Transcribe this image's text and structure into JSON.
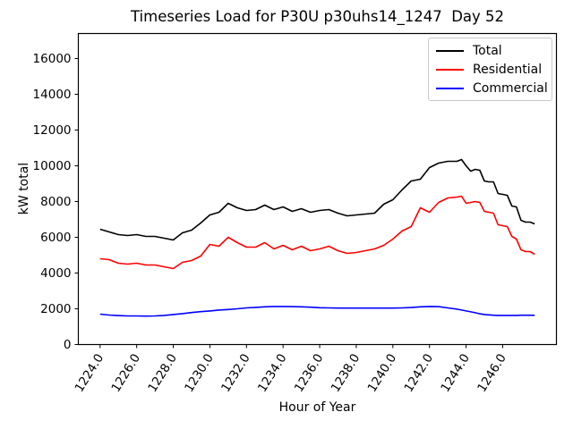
{
  "window": {
    "background": "#ffffff"
  },
  "chart_data": {
    "type": "line",
    "title": "Timeseries Load for P30U p30uhs14_1247  Day 52",
    "xlabel": "Hour of Year",
    "ylabel": "kW total",
    "xlim": [
      1222.8125,
      1248.9375
    ],
    "ylim": [
      0,
      17400
    ],
    "grid": false,
    "legend_position": "upper right",
    "x_ticks": [
      1224,
      1226,
      1228,
      1230,
      1232,
      1234,
      1236,
      1238,
      1240,
      1242,
      1244,
      1246
    ],
    "x_tick_labels": [
      "1224.0",
      "1226.0",
      "1228.0",
      "1230.0",
      "1232.0",
      "1234.0",
      "1236.0",
      "1238.0",
      "1240.0",
      "1242.0",
      "1244.0",
      "1246.0"
    ],
    "x_tick_rotation_deg": 58,
    "y_ticks": [
      0,
      2000,
      4000,
      6000,
      8000,
      10000,
      12000,
      14000,
      16000
    ],
    "x": [
      1224.0,
      1224.5,
      1225.0,
      1225.5,
      1226.0,
      1226.5,
      1227.0,
      1227.5,
      1228.0,
      1228.5,
      1229.0,
      1229.5,
      1230.0,
      1230.5,
      1231.0,
      1231.5,
      1232.0,
      1232.5,
      1233.0,
      1233.5,
      1234.0,
      1234.5,
      1235.0,
      1235.5,
      1236.0,
      1236.5,
      1237.0,
      1237.5,
      1238.0,
      1238.5,
      1239.0,
      1239.5,
      1240.0,
      1240.5,
      1241.0,
      1241.5,
      1242.0,
      1242.5,
      1243.0,
      1243.5,
      1243.75,
      1244.0,
      1244.25,
      1244.5,
      1244.75,
      1245.0,
      1245.25,
      1245.5,
      1245.75,
      1246.0,
      1246.25,
      1246.5,
      1246.75,
      1247.0,
      1247.25,
      1247.5,
      1247.75
    ],
    "series": [
      {
        "name": "Total",
        "color": "#000000",
        "values": [
          6450,
          6300,
          6150,
          6100,
          6150,
          6050,
          6050,
          5950,
          5850,
          6250,
          6400,
          6800,
          7250,
          7400,
          7900,
          7650,
          7500,
          7550,
          7800,
          7550,
          7700,
          7450,
          7600,
          7400,
          7500,
          7550,
          7350,
          7200,
          7250,
          7300,
          7350,
          7850,
          8100,
          8650,
          9150,
          9250,
          9900,
          10150,
          10250,
          10250,
          10350,
          10000,
          9700,
          9800,
          9750,
          9150,
          9100,
          9100,
          8450,
          8400,
          8350,
          7750,
          7700,
          6950,
          6850,
          6850,
          6750
        ]
      },
      {
        "name": "Residential",
        "color": "#ff0000",
        "values": [
          4800,
          4750,
          4550,
          4500,
          4550,
          4450,
          4450,
          4350,
          4250,
          4600,
          4700,
          4950,
          5600,
          5500,
          6000,
          5700,
          5450,
          5450,
          5700,
          5350,
          5550,
          5300,
          5500,
          5250,
          5350,
          5500,
          5250,
          5100,
          5150,
          5250,
          5350,
          5550,
          5900,
          6350,
          6600,
          7650,
          7400,
          7950,
          8200,
          8250,
          8300,
          7900,
          7950,
          8000,
          7950,
          7450,
          7400,
          7350,
          6700,
          6650,
          6600,
          6050,
          5900,
          5300,
          5200,
          5200,
          5050
        ]
      },
      {
        "name": "Commercial",
        "color": "#0000ff",
        "values": [
          1700,
          1650,
          1620,
          1600,
          1600,
          1590,
          1600,
          1630,
          1680,
          1730,
          1790,
          1840,
          1880,
          1930,
          1960,
          2000,
          2050,
          2080,
          2110,
          2130,
          2130,
          2120,
          2110,
          2090,
          2060,
          2050,
          2040,
          2040,
          2040,
          2040,
          2040,
          2040,
          2040,
          2050,
          2070,
          2110,
          2130,
          2120,
          2050,
          1980,
          1930,
          1880,
          1830,
          1780,
          1720,
          1680,
          1660,
          1640,
          1630,
          1630,
          1630,
          1630,
          1630,
          1640,
          1640,
          1640,
          1635
        ]
      }
    ]
  }
}
